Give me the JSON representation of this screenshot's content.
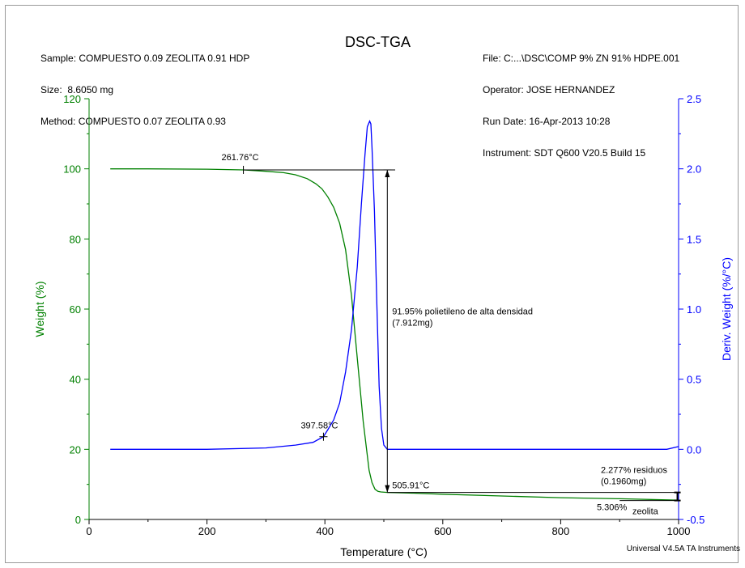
{
  "header": {
    "left": [
      "Sample: COMPUESTO 0.09 ZEOLITA 0.91 HDP",
      "Size:  8.6050 mg",
      "Method: COMPUESTO 0.07 ZEOLITA 0.93"
    ],
    "right": [
      "File: C:...\\DSC\\COMP 9% ZN 91% HDPE.001",
      "Operator: JOSE HERNANDEZ",
      "Run Date: 16-Apr-2013 10:28",
      "Instrument: SDT Q600 V20.5 Build 15"
    ],
    "title": "DSC-TGA",
    "credit": "Universal V4.5A TA Instruments"
  },
  "chart_data": {
    "type": "line",
    "title": "DSC-TGA",
    "xlabel": "Temperature (°C)",
    "ylabel": "Weight (%)",
    "y2label": "Deriv. Weight (%/°C)",
    "xlim": [
      0,
      1000
    ],
    "ylim": [
      0,
      120
    ],
    "y2lim": [
      -0.5,
      2.5
    ],
    "x_ticks": [
      "0",
      "200",
      "400",
      "600",
      "800",
      "1000"
    ],
    "y_ticks": [
      "0",
      "20",
      "40",
      "60",
      "80",
      "100",
      "120"
    ],
    "y2_ticks": [
      "-0.5",
      "0.0",
      "0.5",
      "1.0",
      "1.5",
      "2.0",
      "2.5"
    ],
    "grid": false,
    "colors": {
      "weight": "#008000",
      "deriv": "#0000ff",
      "annotation": "#000000"
    },
    "series": [
      {
        "axis": "left",
        "color": "#008000",
        "x": [
          36,
          100,
          200,
          261.76,
          300,
          330,
          350,
          370,
          385,
          395,
          405,
          415,
          425,
          435,
          445,
          455,
          465,
          475,
          480,
          485,
          490,
          495,
          505.91,
          550,
          600,
          700,
          800,
          900,
          1000
        ],
        "y": [
          100,
          100,
          99.9,
          99.7,
          99.3,
          98.9,
          98.3,
          97.2,
          95.7,
          94.3,
          92,
          89,
          84.5,
          77,
          64,
          46,
          28,
          14,
          10.5,
          8.6,
          8,
          7.85,
          7.7,
          7.5,
          7.2,
          6.7,
          6.2,
          5.9,
          5.5
        ]
      },
      {
        "axis": "right",
        "color": "#0000ff",
        "x": [
          36,
          100,
          200,
          300,
          350,
          380,
          397.58,
          405,
          415,
          425,
          435,
          445,
          455,
          462,
          468,
          472,
          476,
          478,
          480,
          484,
          488,
          492,
          496,
          500,
          505.91,
          520,
          600,
          700,
          800,
          900,
          980,
          1000
        ],
        "y": [
          0.0,
          0.0,
          0.0,
          0.01,
          0.03,
          0.05,
          0.09,
          0.14,
          0.21,
          0.33,
          0.55,
          0.85,
          1.3,
          1.75,
          2.1,
          2.3,
          2.34,
          2.32,
          2.15,
          1.7,
          1.05,
          0.45,
          0.15,
          0.03,
          0.0,
          0.0,
          0.0,
          0.0,
          0.0,
          0.0,
          0.0,
          0.02
        ]
      }
    ],
    "annotations": {
      "onset_label": "261.76°C",
      "onset_x": 261.76,
      "onset_y": 99.7,
      "end_x": 505.91,
      "end_y": 7.7,
      "end_label": "505.91°C",
      "step_label_1": "91.95% polietileno de alta densidad",
      "step_label_2": "(7.912mg)",
      "deriv_point_label": "397.58°C",
      "deriv_point_x": 397.58,
      "deriv_point_y": 0.09,
      "residue_label_1": "2.277% residuos",
      "residue_label_2": "(0.1960mg)",
      "residue_top": 7.7,
      "residue_bottom": 5.4,
      "zeolite_value": "5.306%",
      "zeolite_word": "zeolita"
    }
  }
}
